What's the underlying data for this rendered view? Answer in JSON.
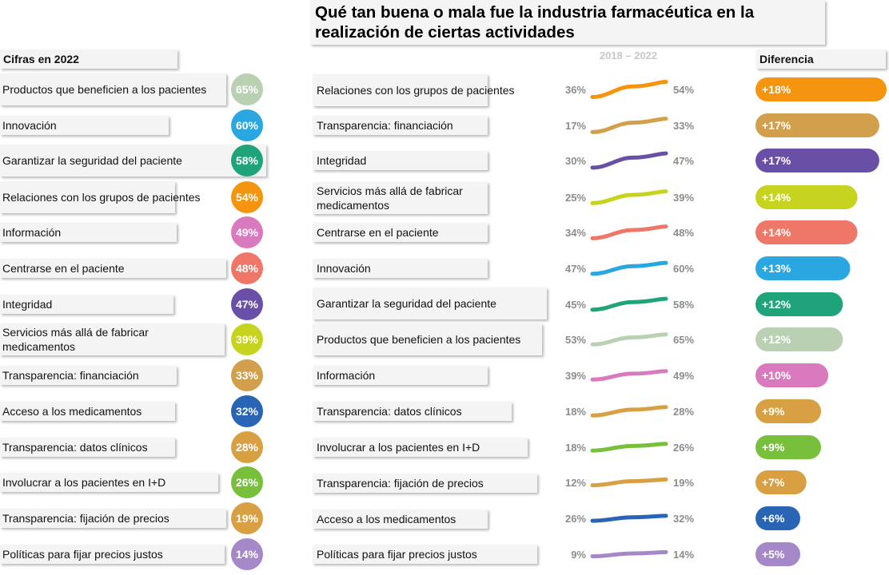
{
  "title": "Qué tan buena o mala fue la industria farmacéutica en la realización de ciertas actividades",
  "left_header": "Cifras en 2022",
  "period_label": "2018 – 2022",
  "diff_header": "Diferencia",
  "chart_data": [
    {
      "type": "table",
      "title": "Cifras en 2022",
      "rows": [
        {
          "label": "Productos que beneficien a los pacientes",
          "value": 65,
          "display": "65%",
          "color": "#b9d0b3"
        },
        {
          "label": "Innovación",
          "value": 60,
          "display": "60%",
          "color": "#2aa7e1"
        },
        {
          "label": "Garantizar la seguridad del paciente",
          "value": 58,
          "display": "58%",
          "color": "#1fa37a"
        },
        {
          "label": "Relaciones con los grupos de pacientes",
          "value": 54,
          "display": "54%",
          "color": "#f5940e"
        },
        {
          "label": "Información",
          "value": 49,
          "display": "49%",
          "color": "#d97abe"
        },
        {
          "label": "Centrarse en el paciente",
          "value": 48,
          "display": "48%",
          "color": "#ef7767"
        },
        {
          "label": "Integridad",
          "value": 47,
          "display": "47%",
          "color": "#6a4fa6"
        },
        {
          "label": "Servicios más allá de fabricar medicamentos",
          "value": 39,
          "display": "39%",
          "color": "#c6d41f"
        },
        {
          "label": "Transparencia: financiación",
          "value": 33,
          "display": "33%",
          "color": "#d2a04d"
        },
        {
          "label": "Acceso a los medicamentos",
          "value": 32,
          "display": "32%",
          "color": "#2a64b4"
        },
        {
          "label": "Transparencia: datos clínicos",
          "value": 28,
          "display": "28%",
          "color": "#d8a042"
        },
        {
          "label": "Involucrar a los pacientes en I+D",
          "value": 26,
          "display": "26%",
          "color": "#78c03c"
        },
        {
          "label": "Transparencia: fijación de precios",
          "value": 19,
          "display": "19%",
          "color": "#d8a042"
        },
        {
          "label": "Políticas para fijar precios justos",
          "value": 14,
          "display": "14%",
          "color": "#a588c8"
        }
      ]
    },
    {
      "type": "line",
      "title": "2018 – 2022",
      "x": [
        "2018",
        "2022"
      ],
      "series": [
        {
          "label": "Relaciones con los grupos de pacientes",
          "start": 36,
          "end": 54,
          "start_display": "36%",
          "end_display": "54%",
          "color": "#f5940e"
        },
        {
          "label": "Transparencia: financiación",
          "start": 17,
          "end": 33,
          "start_display": "17%",
          "end_display": "33%",
          "color": "#d2a04d"
        },
        {
          "label": "Integridad",
          "start": 30,
          "end": 47,
          "start_display": "30%",
          "end_display": "47%",
          "color": "#6a4fa6"
        },
        {
          "label": "Servicios más allá de fabricar medicamentos",
          "start": 25,
          "end": 39,
          "start_display": "25%",
          "end_display": "39%",
          "color": "#c6d41f"
        },
        {
          "label": "Centrarse en el paciente",
          "start": 34,
          "end": 48,
          "start_display": "34%",
          "end_display": "48%",
          "color": "#ef7767"
        },
        {
          "label": "Innovación",
          "start": 47,
          "end": 60,
          "start_display": "47%",
          "end_display": "60%",
          "color": "#2aa7e1"
        },
        {
          "label": "Garantizar la seguridad del paciente",
          "start": 45,
          "end": 58,
          "start_display": "45%",
          "end_display": "58%",
          "color": "#1fa37a"
        },
        {
          "label": "Productos que beneficien a los pacientes",
          "start": 53,
          "end": 65,
          "start_display": "53%",
          "end_display": "65%",
          "color": "#b9d0b3"
        },
        {
          "label": "Información",
          "start": 39,
          "end": 49,
          "start_display": "39%",
          "end_display": "49%",
          "color": "#d97abe"
        },
        {
          "label": "Transparencia: datos clínicos",
          "start": 18,
          "end": 28,
          "start_display": "18%",
          "end_display": "28%",
          "color": "#d8a042"
        },
        {
          "label": "Involucrar a los pacientes en I+D",
          "start": 18,
          "end": 26,
          "start_display": "18%",
          "end_display": "26%",
          "color": "#78c03c"
        },
        {
          "label": "Transparencia: fijación de precios",
          "start": 12,
          "end": 19,
          "start_display": "12%",
          "end_display": "19%",
          "color": "#d8a042"
        },
        {
          "label": "Acceso a los medicamentos",
          "start": 26,
          "end": 32,
          "start_display": "26%",
          "end_display": "32%",
          "color": "#2a64b4"
        },
        {
          "label": "Políticas para fijar precios justos",
          "start": 9,
          "end": 14,
          "start_display": "9%",
          "end_display": "14%",
          "color": "#a588c8"
        }
      ]
    },
    {
      "type": "bar",
      "title": "Diferencia",
      "categories": [
        "Relaciones con los grupos de pacientes",
        "Transparencia: financiación",
        "Integridad",
        "Servicios más allá de fabricar medicamentos",
        "Centrarse en el paciente",
        "Innovación",
        "Garantizar la seguridad del paciente",
        "Productos que beneficien a los pacientes",
        "Información",
        "Transparencia: datos clínicos",
        "Involucrar a los pacientes en I+D",
        "Transparencia: fijación de precios",
        "Acceso a los medicamentos",
        "Políticas para fijar precios justos"
      ],
      "values": [
        18,
        17,
        17,
        14,
        14,
        13,
        12,
        12,
        10,
        9,
        9,
        7,
        6,
        5
      ],
      "labels": [
        "+18%",
        "+17%",
        "+17%",
        "+14%",
        "+14%",
        "+13%",
        "+12%",
        "+12%",
        "+10%",
        "+9%",
        "+9%",
        "+7%",
        "+6%",
        "+5%"
      ],
      "colors": [
        "#f5940e",
        "#d2a04d",
        "#6a4fa6",
        "#c6d41f",
        "#ef7767",
        "#2aa7e1",
        "#1fa37a",
        "#b9d0b3",
        "#d97abe",
        "#d8a042",
        "#78c03c",
        "#d8a042",
        "#2a64b4",
        "#a588c8"
      ]
    }
  ]
}
